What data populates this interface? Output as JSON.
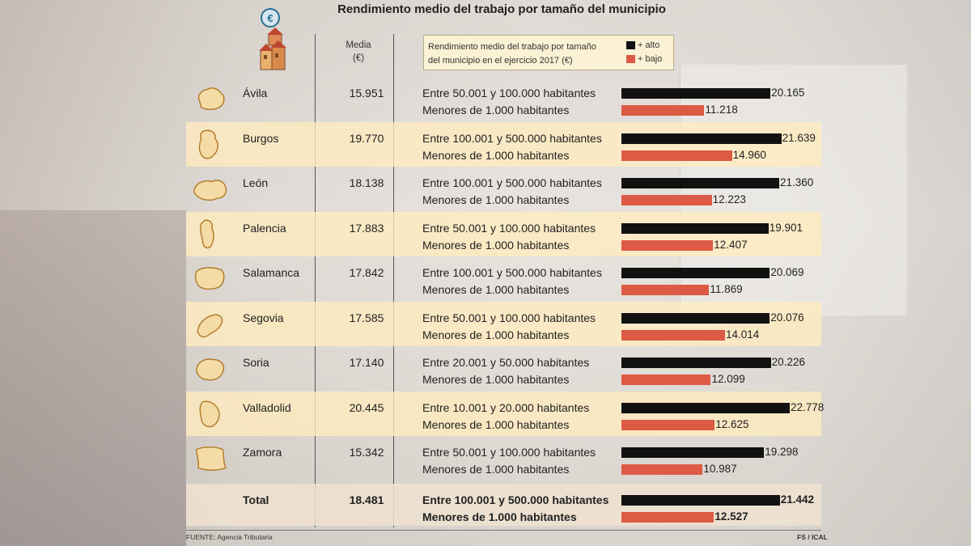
{
  "title": "Rendimiento medio del trabajo por tamaño del municipio",
  "headers": {
    "media_line1": "Media",
    "media_line2": "(€)"
  },
  "legend": {
    "description_line1": "Rendimiento medio del trabajo por tamaño",
    "description_line2": "del municipio en el ejercicio 2017 (€)",
    "high_label": "+ alto",
    "low_label": "+ bajo"
  },
  "colors": {
    "high": "#111111",
    "low": "#dd5a45",
    "highlight_row": "#ffecbe",
    "legend_bg": "#fbf1d4"
  },
  "icons": {
    "logo": "euro-houses-icon",
    "province": "province-map-icon"
  },
  "rows": [
    {
      "name": "Ávila",
      "media": "15.951",
      "cat_high": "Entre 50.001 y 100.000 habitantes",
      "cat_low": "Menores de 1.000 habitantes",
      "high": "20.165",
      "low": "11.218"
    },
    {
      "name": "Burgos",
      "media": "19.770",
      "cat_high": "Entre 100.001 y 500.000 habitantes",
      "cat_low": "Menores de 1.000 habitantes",
      "high": "21.639",
      "low": "14.960"
    },
    {
      "name": "León",
      "media": "18.138",
      "cat_high": "Entre 100.001 y 500.000 habitantes",
      "cat_low": "Menores de 1.000 habitantes",
      "high": "21.360",
      "low": "12.223"
    },
    {
      "name": "Palencia",
      "media": "17.883",
      "cat_high": "Entre 50.001 y 100.000 habitantes",
      "cat_low": "Menores de 1.000 habitantes",
      "high": "19.901",
      "low": "12.407"
    },
    {
      "name": "Salamanca",
      "media": "17.842",
      "cat_high": "Entre 100.001 y 500.000 habitantes",
      "cat_low": "Menores de 1.000 habitantes",
      "high": "20.069",
      "low": "11.869"
    },
    {
      "name": "Segovia",
      "media": "17.585",
      "cat_high": "Entre 50.001 y 100.000 habitantes",
      "cat_low": "Menores de 1.000 habitantes",
      "high": "20.076",
      "low": "14.014"
    },
    {
      "name": "Soria",
      "media": "17.140",
      "cat_high": "Entre 20.001 y 50.000 habitantes",
      "cat_low": "Menores de 1.000 habitantes",
      "high": "20.226",
      "low": "12.099"
    },
    {
      "name": "Valladolid",
      "media": "20.445",
      "cat_high": "Entre 10.001 y 20.000 habitantes",
      "cat_low": "Menores de 1.000 habitantes",
      "high": "22.778",
      "low": "12.625"
    },
    {
      "name": "Zamora",
      "media": "15.342",
      "cat_high": "Entre 50.001 y 100.000 habitantes",
      "cat_low": "Menores de 1.000 habitantes",
      "high": "19.298",
      "low": "10.987"
    }
  ],
  "total": {
    "name": "Total",
    "media": "18.481",
    "cat_high": "Entre 100.001 y 500.000 habitantes",
    "cat_low": "Menores de 1.000 habitantes",
    "high": "21.442",
    "low": "12.527"
  },
  "footer": {
    "source": "FUENTE: Agencia Tributaria",
    "credit": "FS / ICAL"
  },
  "chart_data": {
    "type": "bar",
    "categories": [
      "Ávila",
      "Burgos",
      "León",
      "Palencia",
      "Salamanca",
      "Segovia",
      "Soria",
      "Valladolid",
      "Zamora",
      "Total"
    ],
    "series": [
      {
        "name": "+ alto",
        "values": [
          20165,
          21639,
          21360,
          19901,
          20069,
          20076,
          20226,
          22778,
          19298,
          21442
        ]
      },
      {
        "name": "+ bajo",
        "values": [
          11218,
          14960,
          12223,
          12407,
          11869,
          14014,
          12099,
          12625,
          10987,
          12527
        ]
      }
    ],
    "media": [
      15951,
      19770,
      18138,
      17883,
      17842,
      17585,
      17140,
      20445,
      15342,
      18481
    ],
    "title": "Rendimiento medio del trabajo por tamaño del municipio",
    "xlabel": "",
    "ylabel": "",
    "orientation": "horizontal",
    "xlim": [
      0,
      23000
    ]
  }
}
